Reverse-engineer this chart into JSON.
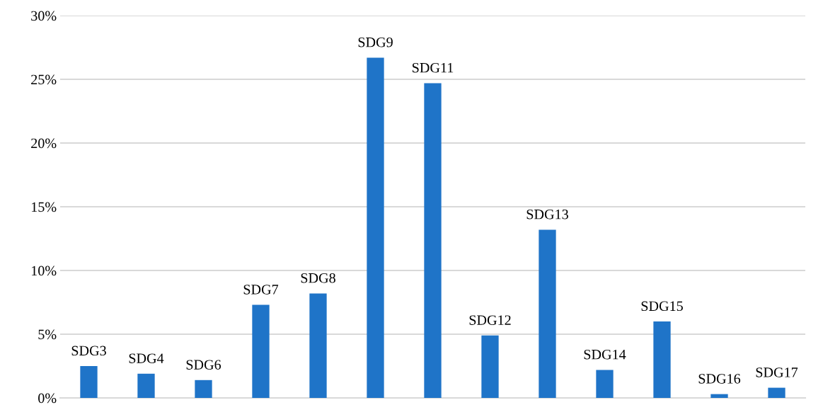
{
  "chart_data": {
    "type": "bar",
    "categories": [
      "SDG3",
      "SDG4",
      "SDG6",
      "SDG7",
      "SDG8",
      "SDG9",
      "SDG11",
      "SDG12",
      "SDG13",
      "SDG14",
      "SDG15",
      "SDG16",
      "SDG17"
    ],
    "values": [
      2.5,
      1.9,
      1.4,
      7.3,
      8.2,
      26.7,
      24.7,
      4.9,
      13.2,
      2.2,
      6.0,
      0.3,
      0.8
    ],
    "color": "#1f74c8",
    "ylim": [
      0,
      30
    ],
    "yticks": [
      {
        "value": 0,
        "label": "0%"
      },
      {
        "value": 5,
        "label": "5%"
      },
      {
        "value": 10,
        "label": "10%"
      },
      {
        "value": 15,
        "label": "15%"
      },
      {
        "value": 20,
        "label": "20%"
      },
      {
        "value": 25,
        "label": "25%"
      },
      {
        "value": 30,
        "label": "30%"
      }
    ],
    "grid": "y",
    "tick_labels": "y"
  }
}
